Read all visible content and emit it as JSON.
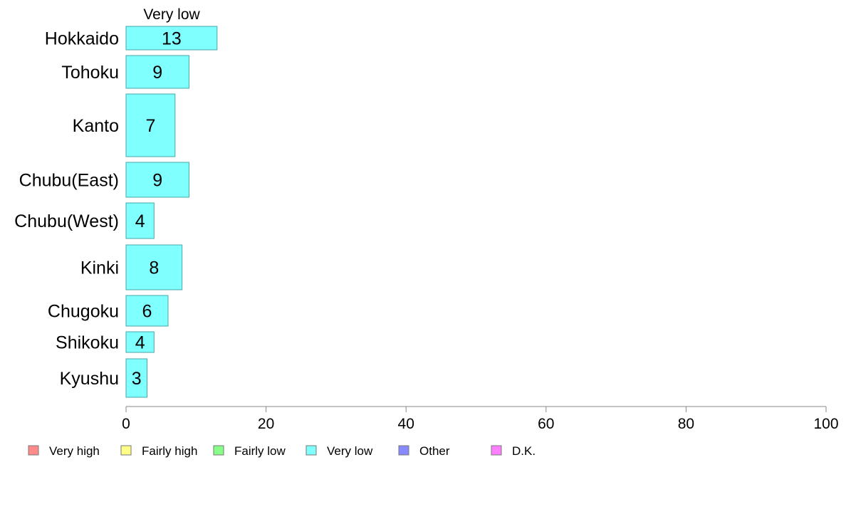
{
  "chart_data": {
    "type": "bar",
    "orientation": "horizontal",
    "stacked": true,
    "categories": [
      "Hokkaido",
      "Tohoku",
      "Kanto",
      "Chubu(East)",
      "Chubu(West)",
      "Kinki",
      "Chugoku",
      "Shikoku",
      "Kyushu"
    ],
    "series": [
      {
        "name": "Very low",
        "color": "#80ffff",
        "values": [
          13,
          9,
          7,
          9,
          4,
          8,
          6,
          4,
          3
        ],
        "value_labels": [
          "13",
          "9",
          "7",
          "9",
          "4",
          "8",
          "6",
          "4",
          "3"
        ]
      }
    ],
    "series_header": "Very low",
    "xlim": [
      0,
      100
    ],
    "xticks": [
      "0",
      "20",
      "40",
      "60",
      "80",
      "100"
    ],
    "legend": {
      "position": "bottom",
      "items": [
        {
          "label": "Very high",
          "color": "#ff8a8a"
        },
        {
          "label": "Fairly high",
          "color": "#ffff88"
        },
        {
          "label": "Fairly low",
          "color": "#88ff88"
        },
        {
          "label": "Very low",
          "color": "#80ffff"
        },
        {
          "label": "Other",
          "color": "#8888ff"
        },
        {
          "label": "D.K.",
          "color": "#ff80ff"
        }
      ]
    }
  }
}
